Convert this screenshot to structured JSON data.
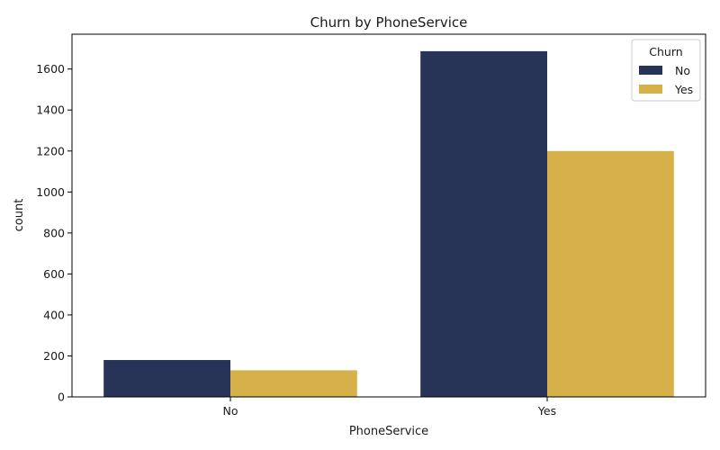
{
  "chart_data": {
    "type": "bar",
    "title": "Churn by PhoneService",
    "xlabel": "PhoneService",
    "ylabel": "count",
    "categories": [
      "No",
      "Yes"
    ],
    "series": [
      {
        "name": "No",
        "values": [
          180,
          1687
        ],
        "color": "#283457"
      },
      {
        "name": "Yes",
        "values": [
          130,
          1200
        ],
        "color": "#d6b048"
      }
    ],
    "ylim": [
      0,
      1770
    ],
    "yticks": [
      0,
      200,
      400,
      600,
      800,
      1000,
      1200,
      1400,
      1600
    ],
    "legend": {
      "title": "Churn",
      "position": "top-right"
    },
    "grid": false
  }
}
